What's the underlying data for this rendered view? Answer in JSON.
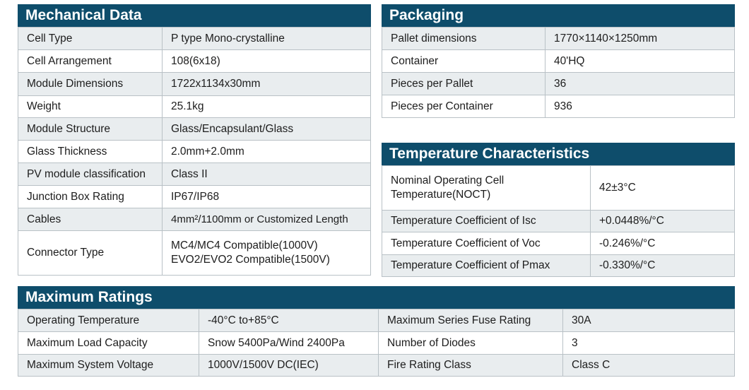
{
  "mechanical": {
    "title": "Mechanical Data",
    "rows": [
      {
        "label": "Cell Type",
        "value": "P type Mono-crystalline"
      },
      {
        "label": "Cell Arrangement",
        "value": "108(6x18)"
      },
      {
        "label": "Module Dimensions",
        "value": "1722x1134x30mm"
      },
      {
        "label": "Weight",
        "value": "25.1kg"
      },
      {
        "label": "Module Structure",
        "value": "Glass/Encapsulant/Glass"
      },
      {
        "label": "Glass Thickness",
        "value": "2.0mm+2.0mm"
      },
      {
        "label": "PV module classification",
        "value": "Class II"
      },
      {
        "label": "Junction Box Rating",
        "value": "IP67/IP68"
      },
      {
        "label": "Cables",
        "value": "4mm²/1100mm or Customized Length"
      },
      {
        "label": "Connector Type",
        "value": "MC4/MC4 Compatible(1000V)",
        "value2": "EVO2/EVO2 Compatible(1500V)"
      }
    ]
  },
  "packaging": {
    "title": "Packaging",
    "rows": [
      {
        "label": "Pallet dimensions",
        "value": "1770×1140×1250mm"
      },
      {
        "label": "Container",
        "value": "40'HQ"
      },
      {
        "label": "Pieces per Pallet",
        "value": "36"
      },
      {
        "label": "Pieces per Container",
        "value": "936"
      }
    ]
  },
  "temperature": {
    "title": "Temperature Characteristics",
    "rows": [
      {
        "label": "Nominal Operating Cell",
        "label2": "Temperature(NOCT)",
        "value": "42±3°C"
      },
      {
        "label": "Temperature Coefficient of Isc",
        "value": "+0.0448%/°C"
      },
      {
        "label": "Temperature Coefficient of Voc",
        "value": "-0.246%/°C"
      },
      {
        "label": "Temperature Coefficient of Pmax",
        "value": "-0.330%/°C"
      }
    ]
  },
  "ratings": {
    "title": "Maximum Ratings",
    "rows": [
      {
        "label_a": "Operating Temperature",
        "value_a": "-40°C to+85°C",
        "label_b": "Maximum Series Fuse Rating",
        "value_b": "30A"
      },
      {
        "label_a": "Maximum Load Capacity",
        "value_a": "Snow 5400Pa/Wind 2400Pa",
        "label_b": "Number of Diodes",
        "value_b": "3"
      },
      {
        "label_a": "Maximum System Voltage",
        "value_a": "1000V/1500V DC(IEC)",
        "label_b": "Fire Rating Class",
        "value_b": "Class C"
      }
    ]
  },
  "colors": {
    "header": "#0e4d6b",
    "shade": "#e9edef",
    "border": "#b9c1c6"
  }
}
